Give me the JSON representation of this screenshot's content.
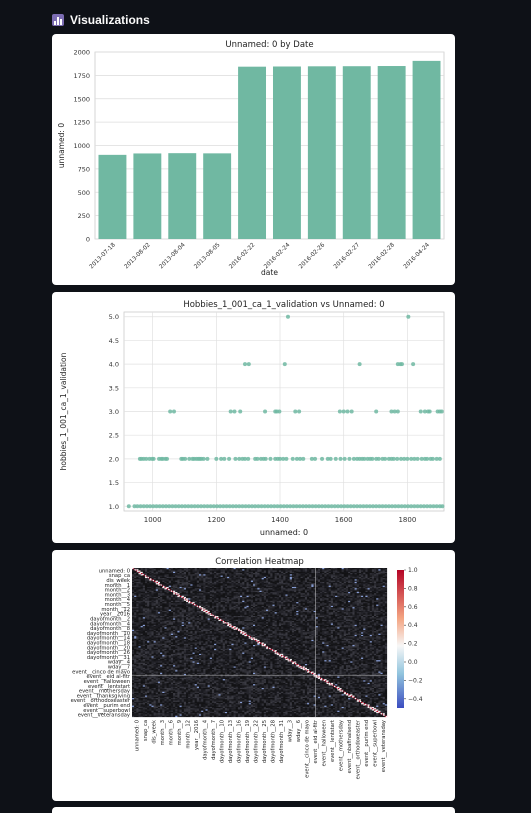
{
  "section": {
    "title": "Visualizations",
    "icon": "bar-chart-icon"
  },
  "charts": [
    {
      "type": "bar",
      "title": "Unnamed: 0 by Date",
      "xlabel": "date",
      "ylabel": "unnamed: 0",
      "categories": [
        "2013-07-18",
        "2013-08-02",
        "2013-08-04",
        "2013-08-05",
        "2016-02-22",
        "2016-02-24",
        "2016-02-26",
        "2016-02-27",
        "2016-02-28",
        "2016-04-24"
      ],
      "values": [
        900,
        915,
        918,
        916,
        1843,
        1845,
        1847,
        1848,
        1850,
        1905
      ],
      "ylim": [
        0,
        2000
      ],
      "yticks": [
        0,
        250,
        500,
        750,
        1000,
        1250,
        1500,
        1750,
        2000
      ],
      "color": "#70b8a2",
      "grid": true
    },
    {
      "type": "scatter",
      "title": "Hobbies_1_001_ca_1_validation vs Unnamed: 0",
      "xlabel": "unnamed: 0",
      "ylabel": "hobbies_1_001_ca_1_validation",
      "xlim": [
        910,
        1915
      ],
      "ylim": [
        0.9,
        5.1
      ],
      "xticks": [
        1000,
        1200,
        1400,
        1600,
        1800
      ],
      "yticks": [
        1.0,
        1.5,
        2.0,
        2.5,
        3.0,
        3.5,
        4.0,
        4.5,
        5.0
      ],
      "color": "#70b8a2",
      "grid": true,
      "points": {
        "5": [
          1425,
          1803
        ],
        "4": [
          1290,
          1302,
          1415,
          1650,
          1770,
          1778,
          1783,
          1818
        ],
        "3": [
          1055,
          1067,
          1245,
          1257,
          1275,
          1353,
          1385,
          1390,
          1398,
          1448,
          1460,
          1588,
          1600,
          1612,
          1625,
          1702,
          1750,
          1760,
          1770,
          1842,
          1855,
          1865,
          1870,
          1895,
          1902,
          1908
        ],
        "2": [
          960,
          965,
          972,
          980,
          990,
          998,
          1003,
          1020,
          1027,
          1032,
          1040,
          1045,
          1090,
          1095,
          1102,
          1115,
          1125,
          1130,
          1137,
          1143,
          1148,
          1153,
          1160,
          1172,
          1200,
          1215,
          1225,
          1240,
          1260,
          1272,
          1282,
          1290,
          1300,
          1322,
          1329,
          1340,
          1348,
          1355,
          1370,
          1385,
          1393,
          1400,
          1410,
          1420,
          1440,
          1453,
          1463,
          1473,
          1500,
          1510,
          1532,
          1550,
          1559,
          1575,
          1590,
          1603,
          1618,
          1632,
          1642,
          1650,
          1658,
          1665,
          1675,
          1683,
          1690,
          1702,
          1710,
          1722,
          1730,
          1742,
          1750,
          1757,
          1768,
          1780,
          1790,
          1800,
          1812,
          1822,
          1832,
          1845,
          1855,
          1862,
          1873,
          1880,
          1892,
          1902
        ],
        "1": [
          925,
          943,
          952,
          962,
          972,
          982,
          992,
          1002,
          1012,
          1022,
          1032,
          1042,
          1052,
          1062,
          1072,
          1082,
          1092,
          1102,
          1112,
          1122,
          1132,
          1142,
          1152,
          1162,
          1172,
          1182,
          1192,
          1202,
          1212,
          1222,
          1232,
          1242,
          1252,
          1262,
          1272,
          1282,
          1292,
          1302,
          1312,
          1322,
          1332,
          1342,
          1352,
          1362,
          1372,
          1382,
          1392,
          1402,
          1412,
          1422,
          1432,
          1442,
          1452,
          1462,
          1472,
          1482,
          1492,
          1502,
          1512,
          1522,
          1532,
          1542,
          1552,
          1562,
          1572,
          1582,
          1592,
          1602,
          1612,
          1622,
          1632,
          1642,
          1652,
          1662,
          1672,
          1682,
          1692,
          1702,
          1712,
          1722,
          1732,
          1742,
          1752,
          1762,
          1772,
          1782,
          1792,
          1802,
          1812,
          1822,
          1832,
          1842,
          1852,
          1862,
          1872,
          1882,
          1892,
          1902,
          1910
        ]
      }
    },
    {
      "type": "heatmap",
      "title": "Correlation Heatmap",
      "ylabels": [
        "unnamed: 0",
        "snap_ca",
        "dis_week",
        "month__1",
        "month__2",
        "month__3",
        "month__4",
        "month__5",
        "month__12",
        "year__2016",
        "dayofmonth__2",
        "dayofmonth__4",
        "dayofmonth__8",
        "dayofmonth__10",
        "dayofmonth__14",
        "dayofmonth__18",
        "dayofmonth__20",
        "dayofmonth__26",
        "dayofmonth__31",
        "wday__4",
        "wday__7",
        "event__cinco de mayo",
        "event__eid al-fitr",
        "event__halloween",
        "event__lentstart",
        "event__mothersday",
        "event__thanksgiving",
        "event__orthodoxeaster",
        "event__purim end",
        "event__superbowl",
        "event__veteransday"
      ],
      "xlabels": [
        "unnamed: 0",
        "snap_ca",
        "dis_week",
        "month__3",
        "month__6",
        "month__9",
        "month__12",
        "year__2016",
        "dayofmonth__4",
        "dayofmonth__7",
        "dayofmonth__10",
        "dayofmonth__13",
        "dayofmonth__16",
        "dayofmonth__19",
        "dayofmonth__22",
        "dayofmonth__25",
        "dayofmonth__28",
        "dayofmonth__31",
        "wday__3",
        "wday__6",
        "event__cinco de mayo",
        "event__eid al-fitr",
        "event__halloween",
        "event__lentstart",
        "event__mothersday",
        "event__nbafinalsend",
        "event__orthodoxeaster",
        "event__purim end",
        "event__superbowl",
        "event__veteransday"
      ],
      "colorbar": {
        "min": -0.5,
        "max": 1.0,
        "ticks": [
          "1.0",
          "0.8",
          "0.6",
          "0.4",
          "0.2",
          "0.0",
          "−0.2",
          "−0.4"
        ]
      }
    }
  ]
}
